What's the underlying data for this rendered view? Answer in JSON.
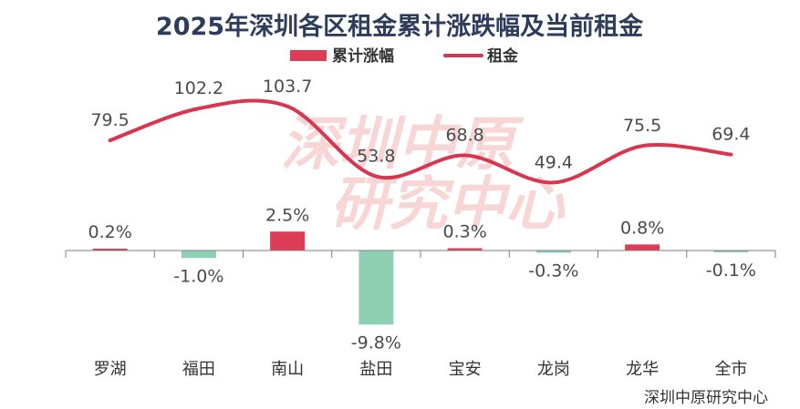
{
  "chart_data": {
    "type": "bar",
    "title": "2025年深圳各区租金累计涨跌幅及当前租金",
    "categories": [
      "罗湖",
      "福田",
      "南山",
      "盐田",
      "宝安",
      "龙岗",
      "龙华",
      "全市"
    ],
    "series": [
      {
        "name": "累计涨幅",
        "type": "bar",
        "values": [
          0.2,
          -1.0,
          2.5,
          -9.8,
          0.3,
          -0.3,
          0.8,
          -0.1
        ],
        "labels": [
          "0.2%",
          "-1.0%",
          "2.5%",
          "-9.8%",
          "0.3%",
          "-0.3%",
          "0.8%",
          "-0.1%"
        ]
      },
      {
        "name": "租金",
        "type": "line",
        "values": [
          79.5,
          102.2,
          103.7,
          53.8,
          68.8,
          49.4,
          75.5,
          69.4
        ],
        "labels": [
          "79.5",
          "102.2",
          "103.7",
          "53.8",
          "68.8",
          "49.4",
          "75.5",
          "69.4"
        ]
      }
    ],
    "legend_position": "top-center",
    "grid": false,
    "watermark": [
      "深圳中原",
      "研究中心"
    ],
    "source": "深圳中原研究中心"
  },
  "colors": {
    "bar_positive": "#dc3c55",
    "bar_negative": "#8ed0b4",
    "line": "#d9354f",
    "title": "#2f3d5c",
    "axis": "#7f7f7f"
  }
}
